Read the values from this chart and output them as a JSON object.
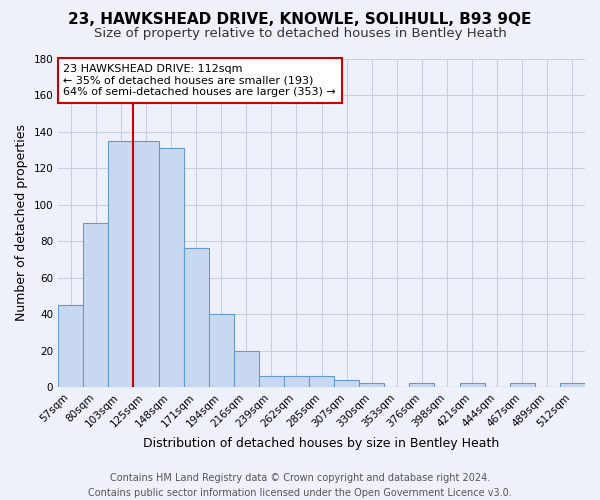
{
  "title": "23, HAWKSHEAD DRIVE, KNOWLE, SOLIHULL, B93 9QE",
  "subtitle": "Size of property relative to detached houses in Bentley Heath",
  "xlabel": "Distribution of detached houses by size in Bentley Heath",
  "ylabel": "Number of detached properties",
  "footer_line1": "Contains HM Land Registry data © Crown copyright and database right 2024.",
  "footer_line2": "Contains public sector information licensed under the Open Government Licence v3.0.",
  "categories": [
    "57sqm",
    "80sqm",
    "103sqm",
    "125sqm",
    "148sqm",
    "171sqm",
    "194sqm",
    "216sqm",
    "239sqm",
    "262sqm",
    "285sqm",
    "307sqm",
    "330sqm",
    "353sqm",
    "376sqm",
    "398sqm",
    "421sqm",
    "444sqm",
    "467sqm",
    "489sqm",
    "512sqm"
  ],
  "values": [
    45,
    90,
    135,
    135,
    131,
    76,
    40,
    20,
    6,
    6,
    6,
    4,
    2,
    0,
    2,
    0,
    2,
    0,
    2,
    0,
    2
  ],
  "bar_color": "#c8d8f0",
  "bar_edge_color": "#6699cc",
  "red_line_color": "#cc0000",
  "annotation_line1": "23 HAWKSHEAD DRIVE: 112sqm",
  "annotation_line2": "← 35% of detached houses are smaller (193)",
  "annotation_line3": "64% of semi-detached houses are larger (353) →",
  "annotation_box_color": "white",
  "annotation_box_edge": "#cc0000",
  "ylim": [
    0,
    180
  ],
  "yticks": [
    0,
    20,
    40,
    60,
    80,
    100,
    120,
    140,
    160,
    180
  ],
  "grid_color": "#c8cfe0",
  "bg_color": "#eef1fa",
  "plot_bg_color": "#eef1fa",
  "title_fontsize": 11,
  "subtitle_fontsize": 9.5,
  "tick_fontsize": 7.5,
  "ylabel_fontsize": 9,
  "xlabel_fontsize": 9,
  "footer_fontsize": 7
}
